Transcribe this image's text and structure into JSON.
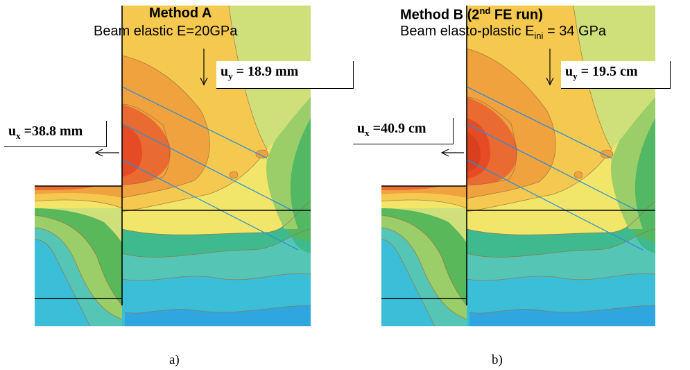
{
  "panel_a": {
    "title": "Method A",
    "subtitle": "Beam elastic E=20GPa",
    "uy": {
      "sym": "u",
      "sub": "y",
      "text": " = 18.9 mm"
    },
    "ux": {
      "sym": "u",
      "sub": "x",
      "text": " =38.8 mm"
    },
    "caption": "a)"
  },
  "panel_b": {
    "title_pre": "Method B (2",
    "title_sup": "nd",
    "title_post": " FE run)",
    "subtitle_pre": "Beam elasto-plastic E",
    "subtitle_sub": "ini",
    "subtitle_post": " = 34 GPa",
    "uy": {
      "sym": "u",
      "sub": "y",
      "text": " = 19.5 cm"
    },
    "ux": {
      "sym": "u",
      "sub": "x",
      "text": " =40.9 cm"
    },
    "caption": "b)"
  },
  "colors": {
    "band1": "#2fa6df",
    "band2": "#3bbfd8",
    "band3": "#55c6b6",
    "band4": "#3fb98e",
    "band5": "#58b85a",
    "band6": "#9bce68",
    "band7": "#cfe07a",
    "band8": "#f1e66a",
    "band9": "#f5c950",
    "band10": "#efa23e",
    "band11": "#ea6b32",
    "band12": "#e64b25"
  }
}
